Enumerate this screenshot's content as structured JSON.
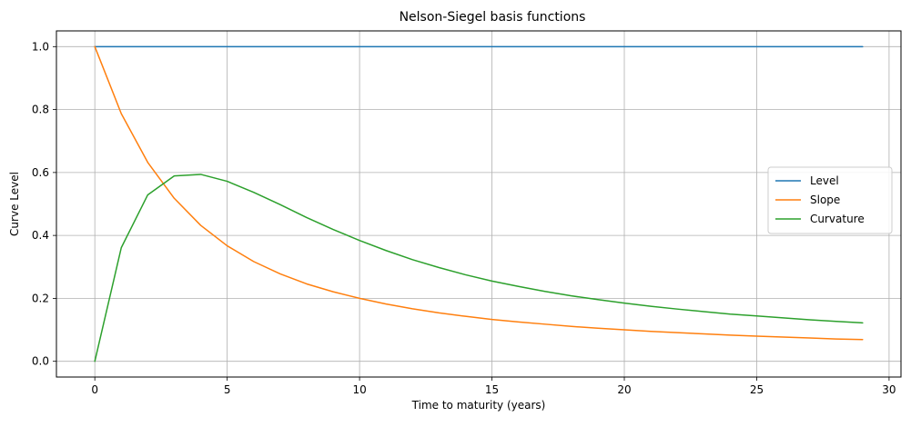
{
  "chart_data": {
    "type": "line",
    "title": "Nelson-Siegel basis functions",
    "xlabel": "Time to maturity (years)",
    "ylabel": "Curve Level",
    "xlim": [
      -1.45,
      30.45
    ],
    "ylim": [
      -0.05,
      1.05
    ],
    "xticks": [
      0,
      5,
      10,
      15,
      20,
      25,
      30
    ],
    "xtick_labels": [
      "0",
      "5",
      "10",
      "15",
      "20",
      "25",
      "30"
    ],
    "yticks": [
      0.0,
      0.2,
      0.4,
      0.6,
      0.8,
      1.0
    ],
    "ytick_labels": [
      "0.0",
      "0.2",
      "0.4",
      "0.6",
      "0.8",
      "1.0"
    ],
    "grid": true,
    "legend_position": "center-right",
    "x": [
      0,
      1,
      2,
      3,
      4,
      5,
      6,
      7,
      8,
      9,
      10,
      11,
      12,
      13,
      14,
      15,
      16,
      17,
      18,
      19,
      20,
      21,
      22,
      23,
      24,
      25,
      26,
      27,
      28,
      29
    ],
    "series": [
      {
        "name": "Level",
        "color": "#1f77b4",
        "values": [
          1,
          1,
          1,
          1,
          1,
          1,
          1,
          1,
          1,
          1,
          1,
          1,
          1,
          1,
          1,
          1,
          1,
          1,
          1,
          1,
          1,
          1,
          1,
          1,
          1,
          1,
          1,
          1,
          1,
          1
        ]
      },
      {
        "name": "Slope",
        "color": "#ff7f0e",
        "values": [
          1.0,
          0.787,
          0.632,
          0.518,
          0.432,
          0.367,
          0.317,
          0.278,
          0.246,
          0.221,
          0.2,
          0.182,
          0.167,
          0.154,
          0.143,
          0.133,
          0.125,
          0.118,
          0.111,
          0.105,
          0.1,
          0.095,
          0.091,
          0.087,
          0.083,
          0.08,
          0.077,
          0.074,
          0.071,
          0.069
        ]
      },
      {
        "name": "Curvature",
        "color": "#2ca02c",
        "values": [
          0.0,
          0.361,
          0.529,
          0.589,
          0.594,
          0.572,
          0.537,
          0.498,
          0.457,
          0.419,
          0.384,
          0.352,
          0.323,
          0.298,
          0.275,
          0.255,
          0.238,
          0.222,
          0.208,
          0.196,
          0.185,
          0.175,
          0.166,
          0.158,
          0.15,
          0.144,
          0.138,
          0.132,
          0.127,
          0.122
        ]
      }
    ]
  }
}
